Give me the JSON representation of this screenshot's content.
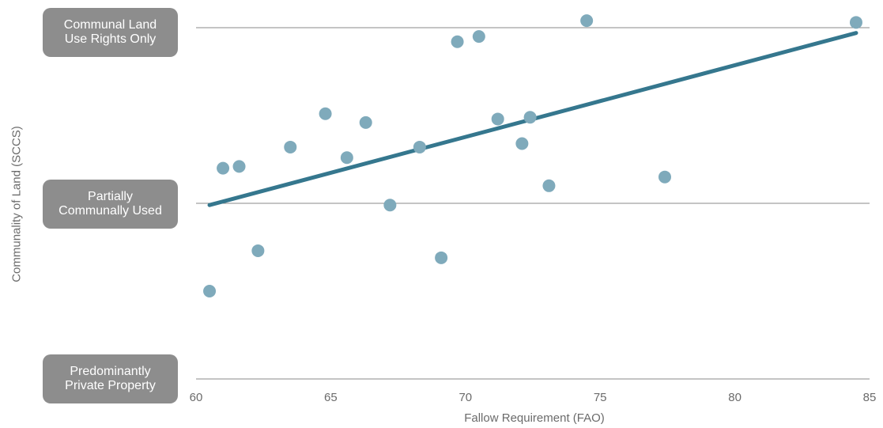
{
  "chart_data": {
    "type": "scatter",
    "title": "",
    "xlabel": "Fallow Requirement (FAO)",
    "ylabel": "Communality of Land (SCCS)",
    "xlim": [
      60,
      85
    ],
    "ylim": [
      0,
      2.1
    ],
    "x_ticks": [
      60,
      65,
      70,
      75,
      80,
      85
    ],
    "y_categories": [
      {
        "value": 0,
        "label": "Predominantly\nPrivate Property"
      },
      {
        "value": 1,
        "label": "Partially\nCommunally Used"
      },
      {
        "value": 2,
        "label": "Communal Land\nUse Rights Only"
      }
    ],
    "grid": "horizontal",
    "legend": "none",
    "point_color": "#7faabb",
    "trend_color": "#35778e",
    "points": [
      {
        "x": 60.5,
        "y": 0.5
      },
      {
        "x": 61.0,
        "y": 1.2
      },
      {
        "x": 61.6,
        "y": 1.21
      },
      {
        "x": 62.3,
        "y": 0.73
      },
      {
        "x": 63.5,
        "y": 1.32
      },
      {
        "x": 64.8,
        "y": 1.51
      },
      {
        "x": 65.6,
        "y": 1.26
      },
      {
        "x": 66.3,
        "y": 1.46
      },
      {
        "x": 67.2,
        "y": 0.99
      },
      {
        "x": 68.3,
        "y": 1.32
      },
      {
        "x": 69.1,
        "y": 0.69
      },
      {
        "x": 69.7,
        "y": 1.92
      },
      {
        "x": 70.5,
        "y": 1.95
      },
      {
        "x": 71.2,
        "y": 1.48
      },
      {
        "x": 72.1,
        "y": 1.34
      },
      {
        "x": 72.4,
        "y": 1.49
      },
      {
        "x": 73.1,
        "y": 1.1
      },
      {
        "x": 74.5,
        "y": 2.04
      },
      {
        "x": 77.4,
        "y": 1.15
      },
      {
        "x": 84.5,
        "y": 2.03
      }
    ],
    "trendline": {
      "x": [
        60.5,
        84.5
      ],
      "y": [
        0.99,
        1.97
      ]
    }
  }
}
